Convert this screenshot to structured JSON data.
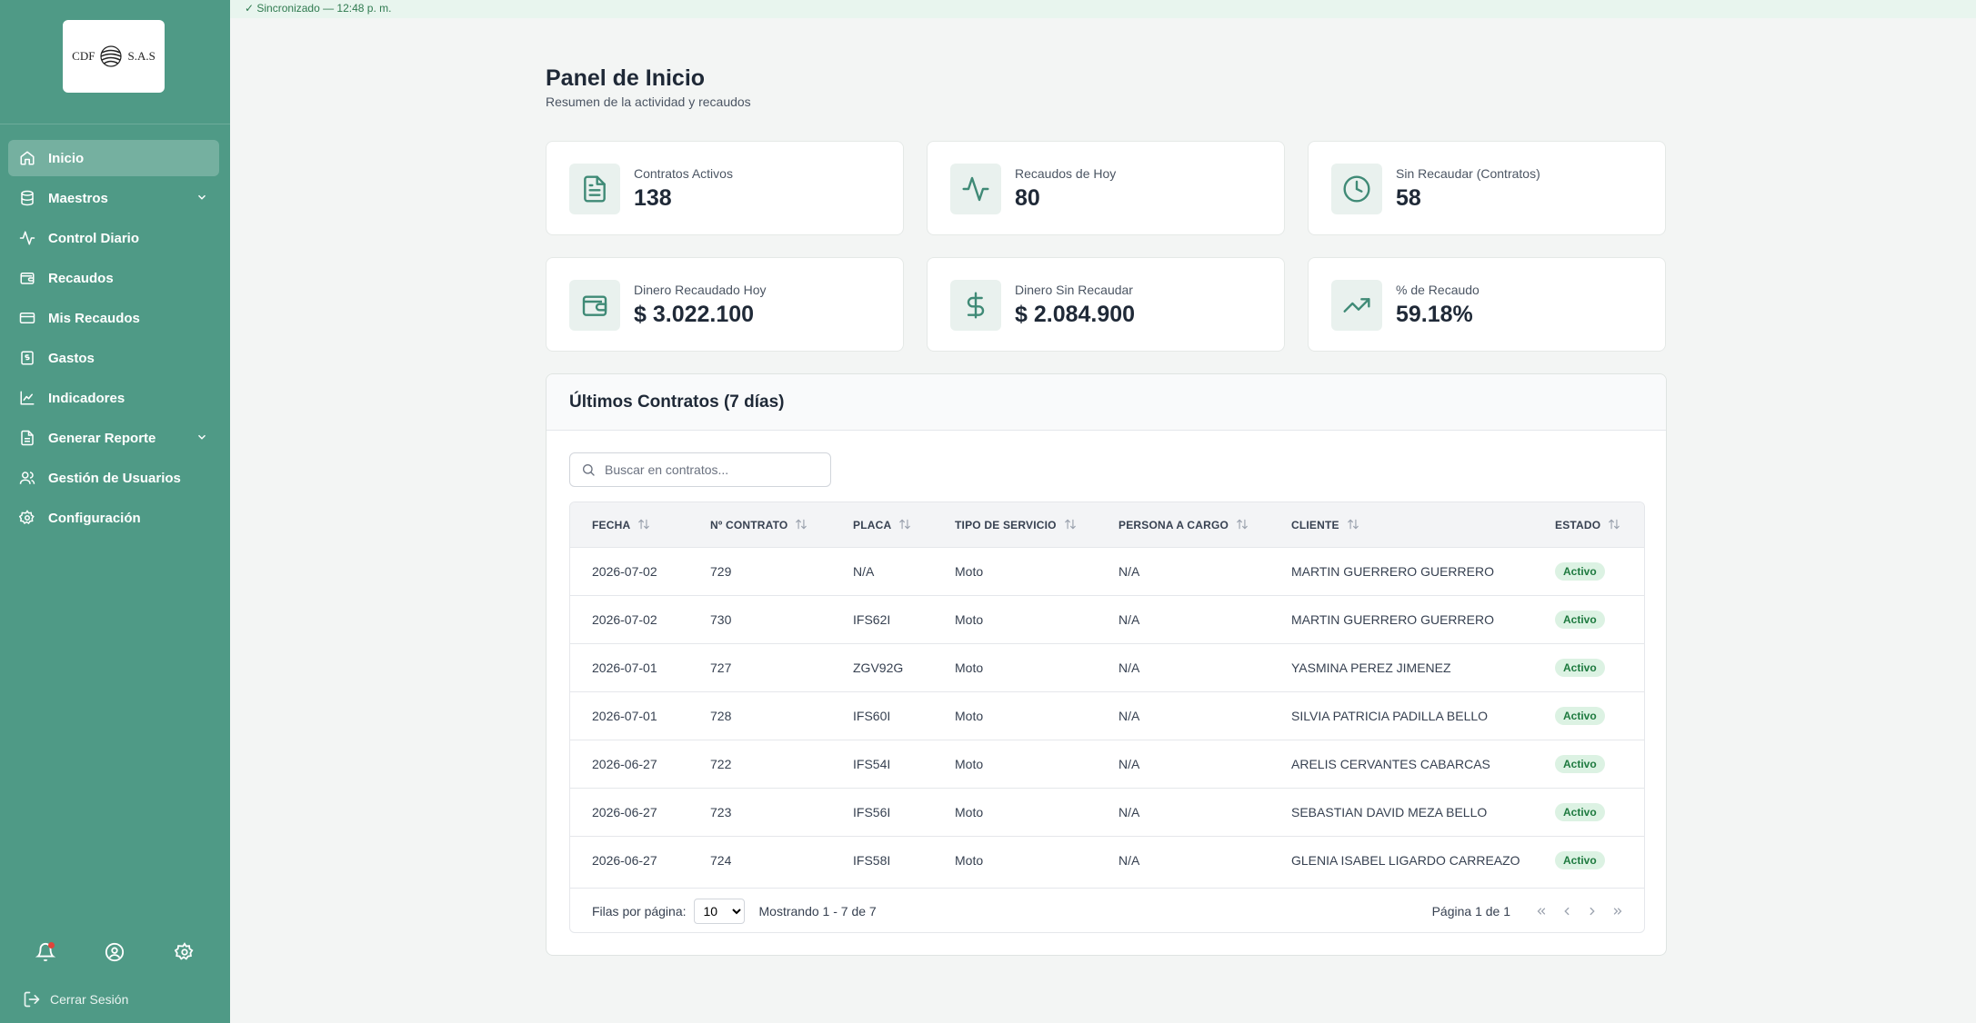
{
  "sync": {
    "status": "✓ Sincronizado — 12:48 p. m."
  },
  "logo": {
    "left": "CDF",
    "right": "S.A.S"
  },
  "sidebar": {
    "items": [
      {
        "label": "Inicio",
        "icon": "home-icon",
        "active": true
      },
      {
        "label": "Maestros",
        "icon": "database-icon",
        "expandable": true
      },
      {
        "label": "Control Diario",
        "icon": "activity-icon"
      },
      {
        "label": "Recaudos",
        "icon": "wallet-icon"
      },
      {
        "label": "Mis Recaudos",
        "icon": "credit-card-icon"
      },
      {
        "label": "Gastos",
        "icon": "receipt-dollar-icon"
      },
      {
        "label": "Indicadores",
        "icon": "line-chart-icon"
      },
      {
        "label": "Generar Reporte",
        "icon": "file-report-icon",
        "expandable": true
      },
      {
        "label": "Gestión de Usuarios",
        "icon": "users-icon"
      },
      {
        "label": "Configuración",
        "icon": "gear-icon"
      }
    ],
    "logout": "Cerrar Sesión"
  },
  "header": {
    "title": "Panel de Inicio",
    "subtitle": "Resumen de la actividad y recaudos"
  },
  "stats": [
    {
      "label": "Contratos Activos",
      "value": "138",
      "icon": "file-text-icon"
    },
    {
      "label": "Recaudos de Hoy",
      "value": "80",
      "icon": "activity-icon"
    },
    {
      "label": "Sin Recaudar (Contratos)",
      "value": "58",
      "icon": "clock-icon"
    },
    {
      "label": "Dinero Recaudado Hoy",
      "value": "$ 3.022.100",
      "icon": "wallet-icon"
    },
    {
      "label": "Dinero Sin Recaudar",
      "value": "$ 2.084.900",
      "icon": "dollar-icon"
    },
    {
      "label": "% de Recaudo",
      "value": "59.18%",
      "icon": "trending-up-icon"
    }
  ],
  "contracts": {
    "title": "Últimos Contratos (7 días)",
    "search_placeholder": "Buscar en contratos...",
    "columns": [
      "FECHA",
      "Nº CONTRATO",
      "PLACA",
      "TIPO DE SERVICIO",
      "PERSONA A CARGO",
      "CLIENTE",
      "ESTADO"
    ],
    "rows": [
      [
        "2026-07-02",
        "729",
        "N/A",
        "Moto",
        "N/A",
        "MARTIN GUERRERO GUERRERO",
        "Activo"
      ],
      [
        "2026-07-02",
        "730",
        "IFS62I",
        "Moto",
        "N/A",
        "MARTIN GUERRERO GUERRERO",
        "Activo"
      ],
      [
        "2026-07-01",
        "727",
        "ZGV92G",
        "Moto",
        "N/A",
        "YASMINA PEREZ JIMENEZ",
        "Activo"
      ],
      [
        "2026-07-01",
        "728",
        "IFS60I",
        "Moto",
        "N/A",
        "SILVIA PATRICIA PADILLA BELLO",
        "Activo"
      ],
      [
        "2026-06-27",
        "722",
        "IFS54I",
        "Moto",
        "N/A",
        "ARELIS CERVANTES CABARCAS",
        "Activo"
      ],
      [
        "2026-06-27",
        "723",
        "IFS56I",
        "Moto",
        "N/A",
        "SEBASTIAN DAVID MEZA BELLO",
        "Activo"
      ],
      [
        "2026-06-27",
        "724",
        "IFS58I",
        "Moto",
        "N/A",
        "GLENIA ISABEL LIGARDO CARREAZO",
        "Activo"
      ]
    ],
    "rows_per_page_label": "Filas por página:",
    "rows_per_page": "10",
    "showing": "Mostrando 1 - 7 de 7",
    "page_info": "Página 1 de 1"
  },
  "colors": {
    "sidebar": "#4f9a86",
    "accent": "#3f8a76",
    "badge_bg": "#dcf2e3",
    "badge_text": "#1e7a3f"
  }
}
